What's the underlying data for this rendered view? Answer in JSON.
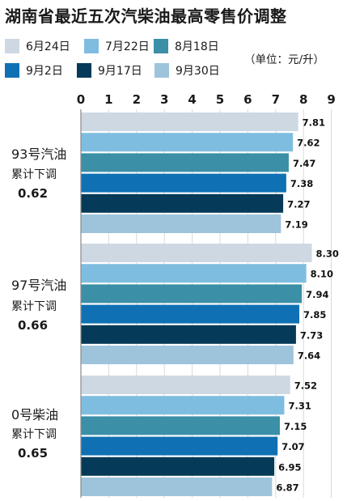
{
  "title": "湖南省最近五次汽柴油最高零售价调整",
  "unit": "（单位：元/升）",
  "legend": [
    {
      "label": "6月24日",
      "color": "#cdd8e3"
    },
    {
      "label": "7月22日",
      "color": "#7fbde0"
    },
    {
      "label": "8月18日",
      "color": "#3b8fa7"
    },
    {
      "label": "9月2日",
      "color": "#0f71b3"
    },
    {
      "label": "9月17日",
      "color": "#053a58"
    },
    {
      "label": "9月30日",
      "color": "#9ec4dc"
    }
  ],
  "groups": [
    {
      "name": "93号汽油",
      "sub": "累计下调",
      "value": "0.62"
    },
    {
      "name": "97号汽油",
      "sub": "累计下调",
      "value": "0.66"
    },
    {
      "name": "0号柴油",
      "sub": "累计下调",
      "value": "0.65"
    }
  ],
  "chart_data": {
    "type": "bar",
    "orientation": "horizontal",
    "title": "湖南省最近五次汽柴油最高零售价调整",
    "unit": "（单位：元/升）",
    "categories": [
      "93号汽油",
      "97号汽油",
      "0号柴油"
    ],
    "series": [
      {
        "name": "6月24日",
        "values": [
          7.81,
          8.3,
          7.52
        ]
      },
      {
        "name": "7月22日",
        "values": [
          7.62,
          8.1,
          7.31
        ]
      },
      {
        "name": "8月18日",
        "values": [
          7.47,
          7.94,
          7.15
        ]
      },
      {
        "name": "9月2日",
        "values": [
          7.38,
          7.85,
          7.07
        ]
      },
      {
        "name": "9月17日",
        "values": [
          7.27,
          7.73,
          6.95
        ]
      },
      {
        "name": "9月30日",
        "values": [
          7.19,
          7.64,
          6.87
        ]
      }
    ],
    "value_labels": [
      [
        "7.81",
        "7.62",
        "7.47",
        "7.38",
        "7.27",
        "7.19"
      ],
      [
        "8.30",
        "8.10",
        "7.94",
        "7.85",
        "7.73",
        "7.64"
      ],
      [
        "7.52",
        "7.31",
        "7.15",
        "7.07",
        "6.95",
        "6.87"
      ]
    ],
    "xticks": [
      "0",
      "1",
      "2",
      "3",
      "4",
      "5",
      "6",
      "7",
      "8",
      "9"
    ],
    "xlim": [
      0,
      9
    ],
    "grid": true,
    "legend_position": "top"
  }
}
